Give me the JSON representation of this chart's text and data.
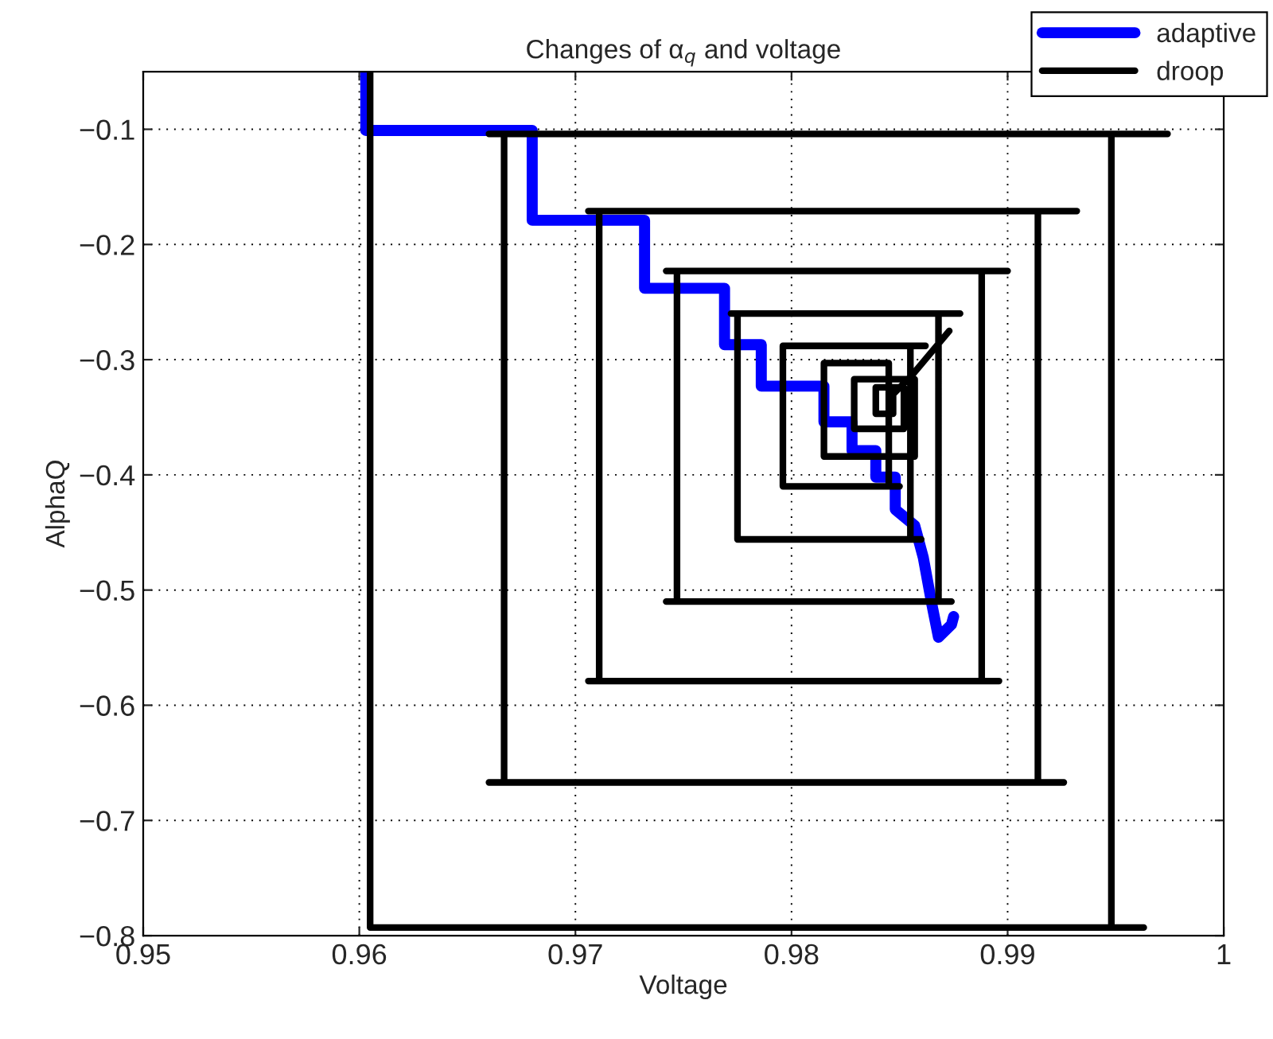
{
  "chart_data": {
    "type": "line",
    "title": "Changes of α$_{q}$ and voltage",
    "xlabel": "Voltage",
    "ylabel": "AlphaQ",
    "xlim": [
      0.95,
      1
    ],
    "xticks": [
      0.95,
      0.96,
      0.97,
      0.98,
      0.99,
      1
    ],
    "ylim": [
      -0.8,
      -0.05
    ],
    "yticks": [
      -0.8,
      -0.7,
      -0.6,
      -0.5,
      -0.4,
      -0.3,
      -0.2,
      -0.1
    ],
    "grid": true,
    "legend": "top right",
    "line_style": "solid",
    "series": [
      {
        "name": "adaptive",
        "color": "#0000ff",
        "x": [
          0.9603,
          0.9603,
          0.968,
          0.968,
          0.9732,
          0.9732,
          0.9769,
          0.9769,
          0.9786,
          0.9786,
          0.9815,
          0.9815,
          0.9828,
          0.9828,
          0.9839,
          0.9839,
          0.9848,
          0.9848,
          0.9857,
          0.9861,
          0.9865,
          0.9868,
          0.9874,
          0.9875
        ],
        "values": [
          -0.05,
          -0.101,
          -0.101,
          -0.179,
          -0.179,
          -0.238,
          -0.238,
          -0.287,
          -0.287,
          -0.323,
          -0.323,
          -0.354,
          -0.354,
          -0.379,
          -0.379,
          -0.402,
          -0.402,
          -0.43,
          -0.444,
          -0.472,
          -0.513,
          -0.541,
          -0.53,
          -0.523
        ]
      },
      {
        "name": "droop",
        "color": "#000000",
        "x": [
          0.9605,
          0.9605,
          0.9963,
          0.9948,
          0.9948,
          0.9974,
          0.966,
          0.9667,
          0.9667,
          0.966,
          0.9926,
          0.9914,
          0.9914,
          0.9932,
          0.9706,
          0.9711,
          0.9711,
          0.9706,
          0.9896,
          0.9888,
          0.9888,
          0.99,
          0.9742,
          0.9747,
          0.9747,
          0.9742,
          0.9874,
          0.9868,
          0.9868,
          0.9878,
          0.9772,
          0.9775,
          0.9775,
          0.986,
          0.9855,
          0.9855,
          0.9862,
          0.9796,
          0.9796,
          0.985,
          0.9845,
          0.9845,
          0.9815,
          0.9815,
          0.9857,
          0.9857,
          0.9829,
          0.9829,
          0.9852,
          0.9852,
          0.9839,
          0.9839,
          0.9847,
          0.9847,
          0.9856,
          0.9873
        ],
        "values": [
          -0.05,
          -0.793,
          -0.793,
          -0.793,
          -0.104,
          -0.104,
          -0.104,
          -0.104,
          -0.667,
          -0.667,
          -0.667,
          -0.667,
          -0.171,
          -0.171,
          -0.171,
          -0.171,
          -0.579,
          -0.579,
          -0.579,
          -0.579,
          -0.223,
          -0.223,
          -0.223,
          -0.223,
          -0.51,
          -0.51,
          -0.51,
          -0.51,
          -0.26,
          -0.26,
          -0.26,
          -0.26,
          -0.456,
          -0.456,
          -0.456,
          -0.288,
          -0.288,
          -0.288,
          -0.41,
          -0.41,
          -0.41,
          -0.303,
          -0.303,
          -0.384,
          -0.384,
          -0.317,
          -0.317,
          -0.36,
          -0.36,
          -0.324,
          -0.324,
          -0.347,
          -0.347,
          -0.33,
          -0.313,
          -0.275
        ]
      }
    ]
  }
}
